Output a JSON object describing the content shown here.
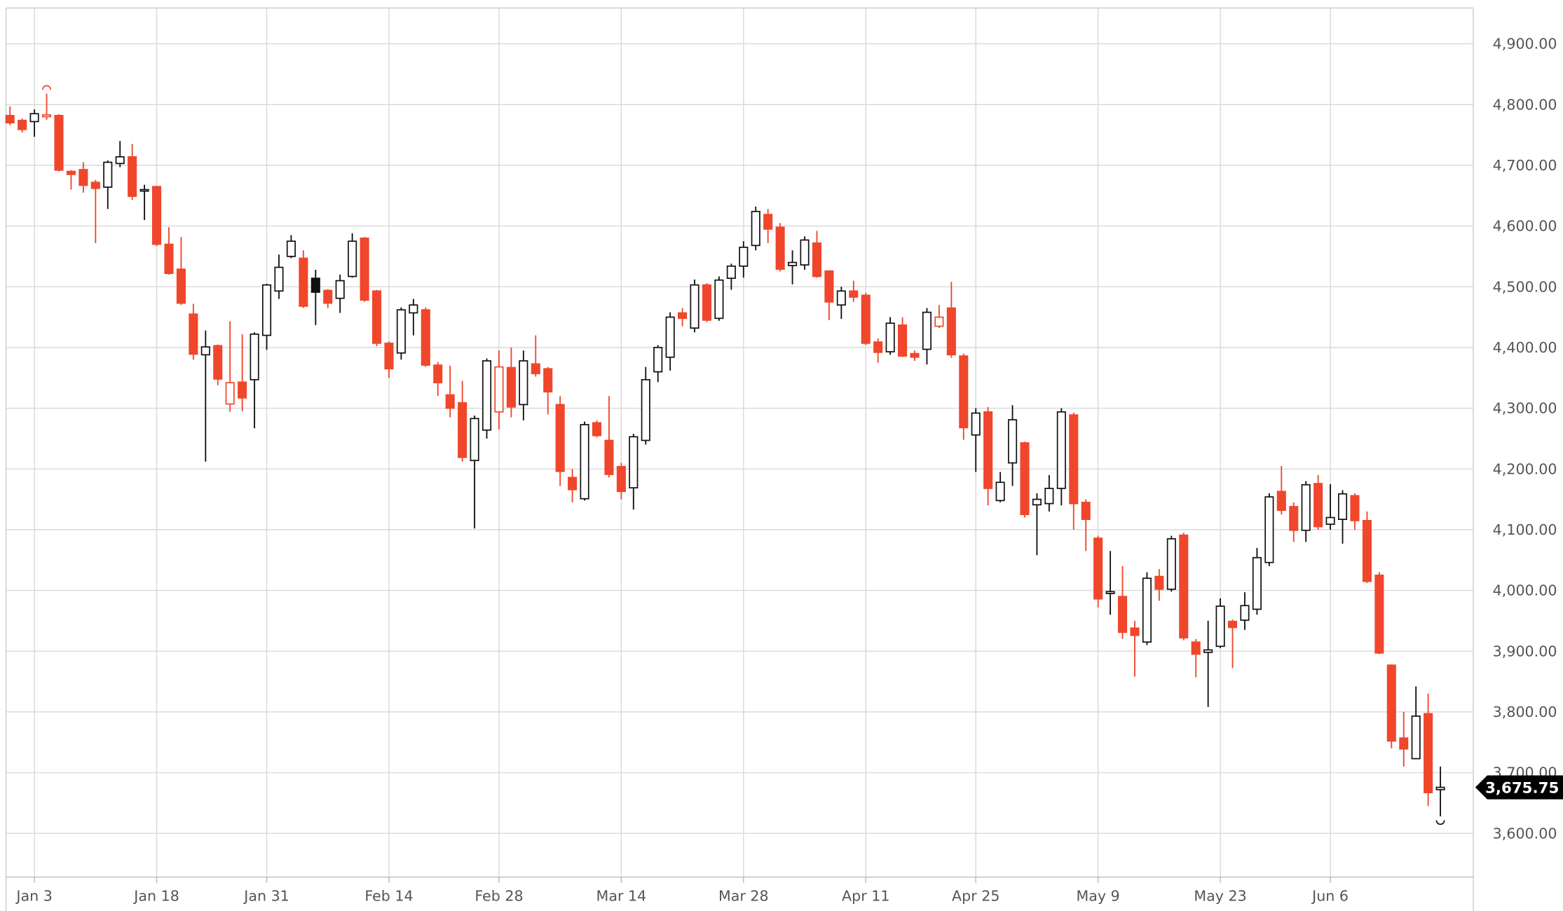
{
  "chart_data": {
    "type": "candlestick",
    "categories": [
      null,
      null,
      "Jan 3",
      null,
      null,
      null,
      null,
      null,
      null,
      null,
      null,
      null,
      "Jan 18",
      null,
      null,
      null,
      null,
      null,
      null,
      null,
      null,
      "Jan 31",
      null,
      null,
      null,
      null,
      null,
      null,
      null,
      null,
      null,
      "Feb 14",
      null,
      null,
      null,
      null,
      null,
      null,
      null,
      null,
      "Feb 28",
      null,
      null,
      null,
      null,
      null,
      null,
      null,
      null,
      null,
      "Mar 14",
      null,
      null,
      null,
      null,
      null,
      null,
      null,
      null,
      null,
      "Mar 28",
      null,
      null,
      null,
      null,
      null,
      null,
      null,
      null,
      null,
      "Apr 11",
      null,
      null,
      null,
      null,
      null,
      null,
      null,
      null,
      "Apr 25",
      null,
      null,
      null,
      null,
      null,
      null,
      null,
      null,
      null,
      "May 9",
      null,
      null,
      null,
      null,
      null,
      null,
      null,
      null,
      null,
      "May 23",
      null,
      null,
      null,
      null,
      null,
      null,
      null,
      null,
      "Jun 6",
      null,
      null,
      null,
      null,
      null,
      null,
      null,
      null,
      null
    ],
    "open": [
      4782,
      4774,
      4772,
      4780,
      4782,
      4690,
      4693,
      4672,
      4664,
      4703,
      4714,
      4658,
      4665,
      4570,
      4529,
      4455,
      4388,
      4403,
      4307,
      4343,
      4347,
      4420,
      4493,
      4550,
      4547,
      4514,
      4494,
      4481,
      4517,
      4580,
      4493,
      4407,
      4391,
      4457,
      4462,
      4371,
      4322,
      4309,
      4214,
      4264,
      4294,
      4367,
      4306,
      4373,
      4365,
      4306,
      4186,
      4151,
      4276,
      4247,
      4204,
      4169,
      4247,
      4360,
      4384,
      4457,
      4432,
      4503,
      4448,
      4514,
      4534,
      4568,
      4619,
      4598,
      4535,
      4536,
      4572,
      4526,
      4470,
      4493,
      4486,
      4409,
      4393,
      4437,
      4390,
      4397,
      4435,
      4465,
      4386,
      4256,
      4294,
      4148,
      4210,
      4243,
      4141,
      4143,
      4168,
      4289,
      4145,
      4086,
      3995,
      3990,
      3938,
      3915,
      4023,
      4002,
      4091,
      3915,
      3898,
      3908,
      3949,
      3951,
      3969,
      4046,
      4163,
      4138,
      4099,
      4176,
      4109,
      4117,
      4156,
      4115,
      4025,
      3877,
      3757,
      3723,
      3797,
      3672
    ],
    "high": [
      4797,
      4777,
      4792,
      4818,
      4784,
      4692,
      4705,
      4676,
      4708,
      4740,
      4735,
      4668,
      4666,
      4598,
      4582,
      4472,
      4428,
      4405,
      4443,
      4422,
      4425,
      4505,
      4553,
      4585,
      4560,
      4528,
      4496,
      4520,
      4588,
      4582,
      4495,
      4410,
      4466,
      4480,
      4466,
      4376,
      4370,
      4345,
      4288,
      4382,
      4395,
      4400,
      4395,
      4420,
      4368,
      4320,
      4200,
      4278,
      4280,
      4320,
      4210,
      4258,
      4368,
      4404,
      4458,
      4465,
      4512,
      4506,
      4517,
      4538,
      4575,
      4632,
      4628,
      4605,
      4560,
      4583,
      4592,
      4527,
      4500,
      4510,
      4490,
      4415,
      4450,
      4450,
      4395,
      4465,
      4470,
      4508,
      4390,
      4300,
      4302,
      4195,
      4305,
      4245,
      4160,
      4190,
      4300,
      4293,
      4150,
      4090,
      4065,
      4040,
      3950,
      4030,
      4035,
      4090,
      4095,
      3920,
      3950,
      3987,
      3952,
      3997,
      4070,
      4160,
      4205,
      4145,
      4180,
      4190,
      4175,
      4165,
      4160,
      4130,
      4030,
      3878,
      3800,
      3842,
      3830,
      3710
    ],
    "low": [
      4766,
      4754,
      4747,
      4775,
      4690,
      4660,
      4655,
      4572,
      4628,
      4697,
      4643,
      4610,
      4567,
      4520,
      4470,
      4380,
      4212,
      4338,
      4294,
      4295,
      4267,
      4396,
      4480,
      4547,
      4465,
      4437,
      4465,
      4457,
      4515,
      4475,
      4402,
      4350,
      4380,
      4420,
      4368,
      4320,
      4285,
      4212,
      4102,
      4250,
      4265,
      4285,
      4280,
      4352,
      4290,
      4172,
      4145,
      4148,
      4252,
      4186,
      4150,
      4133,
      4240,
      4343,
      4362,
      4435,
      4425,
      4442,
      4444,
      4495,
      4515,
      4560,
      4572,
      4525,
      4504,
      4528,
      4515,
      4445,
      4447,
      4475,
      4404,
      4375,
      4388,
      4384,
      4378,
      4372,
      4432,
      4383,
      4248,
      4195,
      4140,
      4145,
      4172,
      4120,
      4058,
      4130,
      4140,
      4100,
      4065,
      3972,
      3960,
      3920,
      3858,
      3910,
      3983,
      3998,
      3918,
      3857,
      3808,
      3905,
      3872,
      3935,
      3960,
      4040,
      4125,
      4080,
      4080,
      4100,
      4100,
      4077,
      4100,
      4012,
      3895,
      3740,
      3710,
      3722,
      3645,
      3628
    ],
    "close": [
      4770,
      4759,
      4785,
      4783,
      4692,
      4685,
      4667,
      4662,
      4705,
      4714,
      4649,
      4660,
      4570,
      4522,
      4473,
      4389,
      4401,
      4348,
      4342,
      4317,
      4422,
      4503,
      4532,
      4575,
      4468,
      4491,
      4473,
      4510,
      4575,
      4478,
      4407,
      4365,
      4462,
      4470,
      4371,
      4342,
      4300,
      4219,
      4283,
      4378,
      4368,
      4302,
      4378,
      4357,
      4327,
      4196,
      4166,
      4273,
      4255,
      4191,
      4163,
      4253,
      4347,
      4400,
      4450,
      4448,
      4503,
      4445,
      4511,
      4534,
      4565,
      4624,
      4595,
      4529,
      4540,
      4577,
      4517,
      4475,
      4493,
      4483,
      4407,
      4392,
      4440,
      4386,
      4384,
      4458,
      4450,
      4388,
      4268,
      4292,
      4168,
      4178,
      4281,
      4125,
      4150,
      4168,
      4294,
      4143,
      4117,
      3986,
      3998,
      3931,
      3926,
      4020,
      4002,
      4085,
      3922,
      3895,
      3902,
      3974,
      3939,
      3975,
      4054,
      4154,
      4132,
      4099,
      4174,
      4105,
      4120,
      4159,
      4115,
      4015,
      3897,
      3752,
      3739,
      3793,
      3667,
      3675.75
    ],
    "last_label": "3,675.75",
    "up_color": "#111111",
    "down_color": "#f0462b",
    "ylim": [
      3528,
      4959
    ],
    "yticks": [
      {
        "value": 3600,
        "label": "3,600.00"
      },
      {
        "value": 3700,
        "label": "3,700.00"
      },
      {
        "value": 3800,
        "label": "3,800.00"
      },
      {
        "value": 3900,
        "label": "3,900.00"
      },
      {
        "value": 4000,
        "label": "4,000.00"
      },
      {
        "value": 4100,
        "label": "4,100.00"
      },
      {
        "value": 4200,
        "label": "4,200.00"
      },
      {
        "value": 4300,
        "label": "4,300.00"
      },
      {
        "value": 4400,
        "label": "4,400.00"
      },
      {
        "value": 4500,
        "label": "4,500.00"
      },
      {
        "value": 4600,
        "label": "4,600.00"
      },
      {
        "value": 4700,
        "label": "4,700.00"
      },
      {
        "value": 4800,
        "label": "4,800.00"
      },
      {
        "value": 4900,
        "label": "4,900.00"
      }
    ],
    "grid": true
  }
}
